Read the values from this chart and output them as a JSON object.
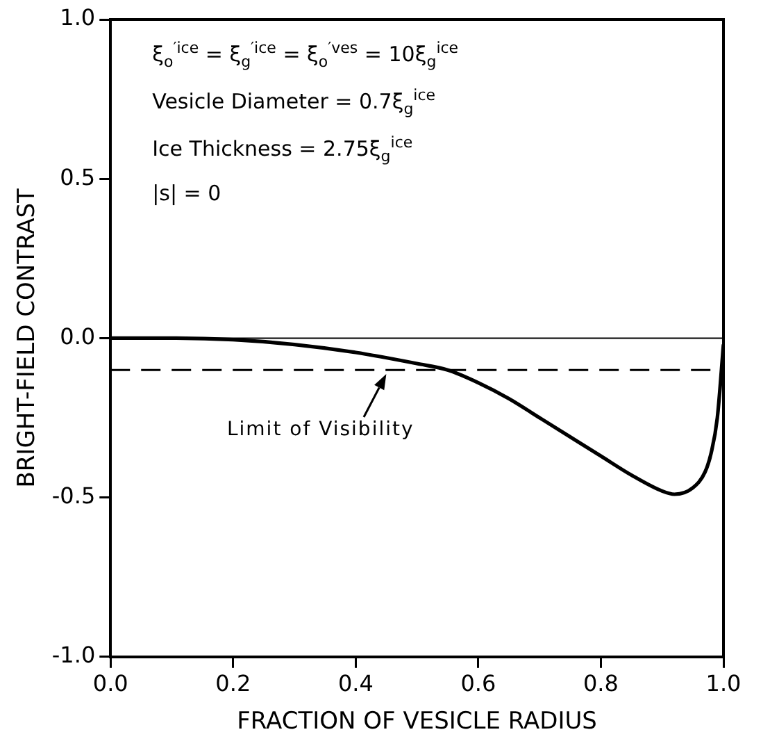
{
  "chart_data": {
    "type": "line",
    "xlabel": "FRACTION OF VESICLE RADIUS",
    "ylabel": "BRIGHT-FIELD CONTRAST",
    "x": [
      0,
      0.1,
      0.2,
      0.3,
      0.4,
      0.5,
      0.55,
      0.6,
      0.65,
      0.7,
      0.75,
      0.8,
      0.85,
      0.9,
      0.92,
      0.95,
      0.97,
      0.98,
      0.99,
      1.0
    ],
    "series": [
      {
        "color": "#000000",
        "values": [
          0,
          0,
          -0.005,
          -0.02,
          -0.045,
          -0.08,
          -0.1,
          -0.14,
          -0.19,
          -0.25,
          -0.31,
          -0.37,
          -0.43,
          -0.48,
          -0.49,
          -0.47,
          -0.42,
          -0.36,
          -0.25,
          -0.02
        ]
      }
    ],
    "xlim": [
      0,
      1
    ],
    "ylim": [
      -1,
      1
    ],
    "xticks": [
      {
        "value": 0,
        "label": "0.0"
      },
      {
        "value": 0.2,
        "label": "0.2"
      },
      {
        "value": 0.4,
        "label": "0.4"
      },
      {
        "value": 0.6,
        "label": "0.6"
      },
      {
        "value": 0.8,
        "label": "0.8"
      },
      {
        "value": 1,
        "label": "1.0"
      }
    ],
    "yticks": [
      {
        "value": -1,
        "label": "-1.0"
      },
      {
        "value": -0.5,
        "label": "-0.5"
      },
      {
        "value": 0,
        "label": "0.0"
      },
      {
        "value": 0.5,
        "label": "0.5"
      },
      {
        "value": 1,
        "label": "1.0"
      }
    ],
    "ref_lines": [
      {
        "axis": "y",
        "value": 0,
        "label": null,
        "line_style": "solid"
      },
      {
        "axis": "y",
        "value": -0.1,
        "label": null,
        "line_style": "dashed"
      }
    ],
    "annotations": [
      "ξ$_{o}$$^{′ice}$ = ξ$_{g}$$^{′ice}$ = ξ$_{o}$$^{′ves}$ = 10ξ$_{g}$$^{ice}$",
      "Vesicle Diameter = 0.7ξ$_{g}$$^{ice}$",
      "Ice Thickness = 2.75ξ$_{g}$$^{ice}$",
      "|s| = 0",
      {
        "text": "Limit of Visibility",
        "x": 0.45,
        "y": -0.1
      }
    ],
    "grid": false,
    "legend": false,
    "marker": "none",
    "line_style": "solid"
  }
}
